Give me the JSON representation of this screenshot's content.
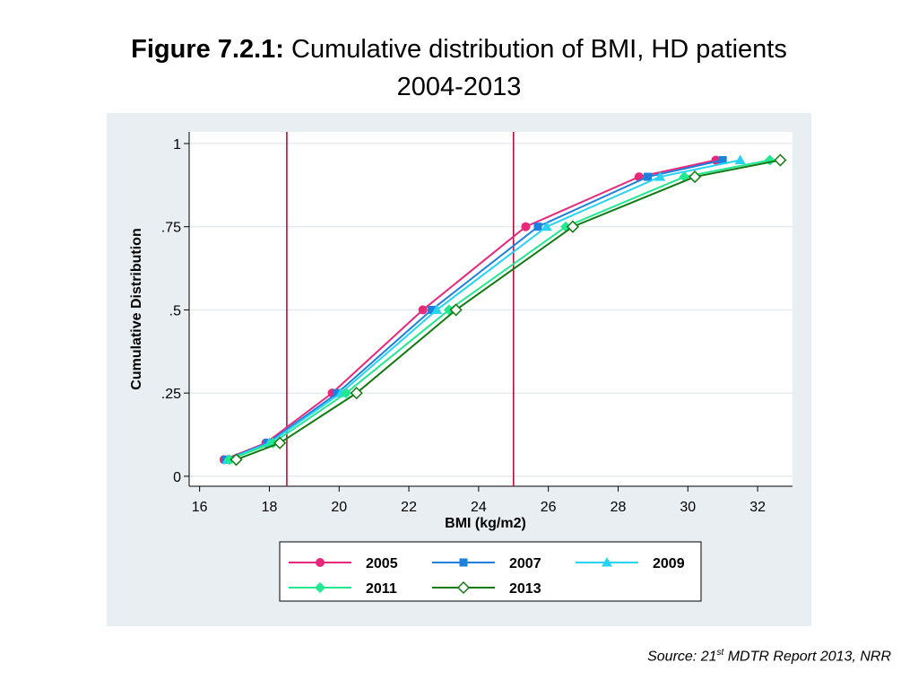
{
  "title": {
    "prefix": "Figure 7.2.1:",
    "line1": " Cumulative distribution of BMI, HD patients",
    "line2": "2004-2013"
  },
  "source": {
    "pre": "Source: 21",
    "sup": "st",
    "post": " MDTR Report 2013, NRR"
  },
  "chart_data": {
    "type": "line",
    "xlabel": "BMI (kg/m2)",
    "ylabel": "Cumulative Distribution",
    "xlim": [
      15.7,
      33.0
    ],
    "ylim": [
      -0.03,
      1.035
    ],
    "x_ticks": [
      16,
      18,
      20,
      22,
      24,
      26,
      28,
      30,
      32
    ],
    "x_tick_labels": [
      "16",
      "18",
      "20",
      "22",
      "24",
      "26",
      "28",
      "30",
      "32"
    ],
    "y_ticks": [
      0,
      0.25,
      0.5,
      0.75,
      1
    ],
    "y_tick_labels": [
      "0",
      ".25",
      ".5",
      ".75",
      "1"
    ],
    "grid": true,
    "reference_lines": [
      18.5,
      25
    ],
    "legend": "bottom",
    "series": [
      {
        "name": "2005",
        "color": "#e8287a",
        "marker": "circle",
        "x": [
          16.7,
          17.9,
          19.8,
          22.4,
          25.35,
          28.6,
          30.8
        ],
        "y": [
          0.05,
          0.1,
          0.25,
          0.5,
          0.75,
          0.9,
          0.95
        ]
      },
      {
        "name": "2007",
        "color": "#1d80dc",
        "marker": "square",
        "x": [
          16.75,
          17.95,
          19.95,
          22.65,
          25.7,
          28.85,
          31.0
        ],
        "y": [
          0.05,
          0.1,
          0.25,
          0.5,
          0.75,
          0.9,
          0.95
        ]
      },
      {
        "name": "2009",
        "color": "#27d3f2",
        "marker": "triangle",
        "x": [
          16.8,
          18.0,
          20.05,
          22.8,
          25.95,
          29.2,
          31.5
        ],
        "y": [
          0.05,
          0.1,
          0.25,
          0.5,
          0.75,
          0.9,
          0.95
        ]
      },
      {
        "name": "2011",
        "color": "#22e890",
        "marker": "diamond",
        "x": [
          16.85,
          18.1,
          20.2,
          23.15,
          26.5,
          29.9,
          32.35
        ],
        "y": [
          0.05,
          0.1,
          0.25,
          0.5,
          0.75,
          0.9,
          0.95
        ]
      },
      {
        "name": "2013",
        "color": "#127a12",
        "marker": "diamond-open",
        "x": [
          17.05,
          18.3,
          20.5,
          23.35,
          26.7,
          30.2,
          32.65
        ],
        "y": [
          0.05,
          0.1,
          0.25,
          0.5,
          0.75,
          0.9,
          0.95
        ]
      }
    ],
    "colors": {
      "reference_line": "#b3113a",
      "plot_background": "#ffffff",
      "outer_background": "#e9eef2",
      "gridline": "#e4e9ee"
    }
  }
}
